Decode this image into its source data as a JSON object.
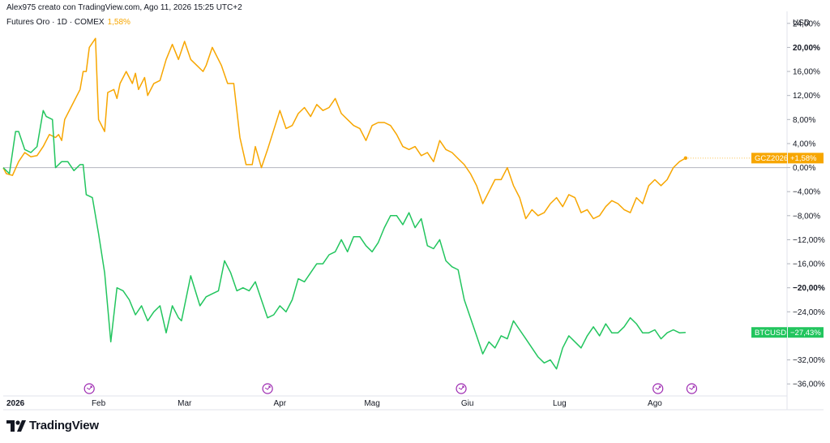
{
  "header": {
    "author_line": "Alex975 creato con TradingView.com, Ago 11, 2026 15:25 UTC+2"
  },
  "legend": {
    "symbol": "Futures Oro · 1D · COMEX",
    "change": "1,58%"
  },
  "brand": {
    "name": "TradingView"
  },
  "colors": {
    "gold": "#f7a600",
    "btc": "#22c55e",
    "event": "#9c27b0"
  },
  "chart_data": {
    "type": "line",
    "currency_label": "USD",
    "y_range": [
      -38,
      26
    ],
    "y_ticks": [
      {
        "v": 24,
        "label": "24,00%"
      },
      {
        "v": 20,
        "label": "20,00%"
      },
      {
        "v": 16,
        "label": "16,00%"
      },
      {
        "v": 12,
        "label": "12,00%"
      },
      {
        "v": 8,
        "label": "8,00%"
      },
      {
        "v": 4,
        "label": "4,00%"
      },
      {
        "v": 0,
        "label": "0,00%"
      },
      {
        "v": -4,
        "label": "−4,00%"
      },
      {
        "v": -8,
        "label": "−8,00%"
      },
      {
        "v": -12,
        "label": "−12,00%"
      },
      {
        "v": -16,
        "label": "−16,00%"
      },
      {
        "v": -20,
        "label": "−20,00%"
      },
      {
        "v": -24,
        "label": "−24,00%"
      },
      {
        "v": -32,
        "label": "−32,00%"
      },
      {
        "v": -36,
        "label": "−36,00%"
      }
    ],
    "x_range": [
      "2026-01-01",
      "2026-09-13"
    ],
    "x_ticks": [
      {
        "date": "2026-01-01",
        "label": "2026",
        "bold": true
      },
      {
        "date": "2026-02-01",
        "label": "Feb"
      },
      {
        "date": "2026-03-01",
        "label": "Mar"
      },
      {
        "date": "2026-04-01",
        "label": "Apr"
      },
      {
        "date": "2026-05-01",
        "label": "Mag"
      },
      {
        "date": "2026-06-01",
        "label": "Giu"
      },
      {
        "date": "2026-07-01",
        "label": "Lug"
      },
      {
        "date": "2026-08-01",
        "label": "Ago"
      }
    ],
    "event_markers": [
      "2026-01-29",
      "2026-03-28",
      "2026-05-30",
      "2026-08-02",
      "2026-08-13"
    ],
    "series": [
      {
        "name": "GCZ2026",
        "color": "#f7a600",
        "last_label": "+1,58%",
        "points": [
          [
            "2026-01-01",
            0
          ],
          [
            "2026-01-02",
            -1
          ],
          [
            "2026-01-04",
            -1.3
          ],
          [
            "2026-01-06",
            1
          ],
          [
            "2026-01-08",
            2.5
          ],
          [
            "2026-01-10",
            1.8
          ],
          [
            "2026-01-12",
            2
          ],
          [
            "2026-01-14",
            3.5
          ],
          [
            "2026-01-16",
            5.5
          ],
          [
            "2026-01-18",
            5
          ],
          [
            "2026-01-19",
            5.5
          ],
          [
            "2026-01-20",
            4.5
          ],
          [
            "2026-01-21",
            8
          ],
          [
            "2026-01-23",
            10
          ],
          [
            "2026-01-25",
            12
          ],
          [
            "2026-01-26",
            13
          ],
          [
            "2026-01-27",
            16
          ],
          [
            "2026-01-28",
            16
          ],
          [
            "2026-01-29",
            20
          ],
          [
            "2026-01-31",
            21.5
          ],
          [
            "2026-02-01",
            8
          ],
          [
            "2026-02-03",
            6
          ],
          [
            "2026-02-04",
            12.5
          ],
          [
            "2026-02-06",
            13
          ],
          [
            "2026-02-07",
            11.5
          ],
          [
            "2026-02-08",
            14
          ],
          [
            "2026-02-10",
            16
          ],
          [
            "2026-02-12",
            14
          ],
          [
            "2026-02-13",
            15.7
          ],
          [
            "2026-02-14",
            13
          ],
          [
            "2026-02-16",
            15
          ],
          [
            "2026-02-17",
            12
          ],
          [
            "2026-02-19",
            14
          ],
          [
            "2026-02-21",
            14.5
          ],
          [
            "2026-02-23",
            18
          ],
          [
            "2026-02-25",
            20.5
          ],
          [
            "2026-02-27",
            18
          ],
          [
            "2026-03-01",
            21
          ],
          [
            "2026-03-03",
            18
          ],
          [
            "2026-03-05",
            17
          ],
          [
            "2026-03-07",
            16
          ],
          [
            "2026-03-08",
            17
          ],
          [
            "2026-03-10",
            20
          ],
          [
            "2026-03-13",
            17
          ],
          [
            "2026-03-15",
            14
          ],
          [
            "2026-03-17",
            14
          ],
          [
            "2026-03-19",
            5
          ],
          [
            "2026-03-21",
            0.5
          ],
          [
            "2026-03-23",
            0.5
          ],
          [
            "2026-03-24",
            3.5
          ],
          [
            "2026-03-26",
            0
          ],
          [
            "2026-03-28",
            3
          ],
          [
            "2026-04-01",
            9.5
          ],
          [
            "2026-04-03",
            6.5
          ],
          [
            "2026-04-05",
            7
          ],
          [
            "2026-04-07",
            9
          ],
          [
            "2026-04-09",
            10
          ],
          [
            "2026-04-11",
            8.5
          ],
          [
            "2026-04-13",
            10.5
          ],
          [
            "2026-04-15",
            9.5
          ],
          [
            "2026-04-17",
            10
          ],
          [
            "2026-04-19",
            11.5
          ],
          [
            "2026-04-21",
            9
          ],
          [
            "2026-04-23",
            8
          ],
          [
            "2026-04-25",
            7
          ],
          [
            "2026-04-27",
            6.5
          ],
          [
            "2026-04-29",
            4.5
          ],
          [
            "2026-05-01",
            7
          ],
          [
            "2026-05-03",
            7.5
          ],
          [
            "2026-05-05",
            7.5
          ],
          [
            "2026-05-07",
            7
          ],
          [
            "2026-05-09",
            5.5
          ],
          [
            "2026-05-11",
            3.5
          ],
          [
            "2026-05-13",
            3
          ],
          [
            "2026-05-15",
            3.5
          ],
          [
            "2026-05-17",
            2
          ],
          [
            "2026-05-19",
            2.5
          ],
          [
            "2026-05-21",
            1
          ],
          [
            "2026-05-23",
            4.5
          ],
          [
            "2026-05-25",
            3
          ],
          [
            "2026-05-27",
            2.5
          ],
          [
            "2026-05-29",
            1.5
          ],
          [
            "2026-05-31",
            0.5
          ],
          [
            "2026-06-02",
            -1
          ],
          [
            "2026-06-04",
            -3
          ],
          [
            "2026-06-06",
            -6
          ],
          [
            "2026-06-08",
            -4
          ],
          [
            "2026-06-10",
            -2
          ],
          [
            "2026-06-12",
            -2
          ],
          [
            "2026-06-14",
            0
          ],
          [
            "2026-06-16",
            -3
          ],
          [
            "2026-06-18",
            -5
          ],
          [
            "2026-06-20",
            -8.5
          ],
          [
            "2026-06-22",
            -7
          ],
          [
            "2026-06-24",
            -8
          ],
          [
            "2026-06-26",
            -7.5
          ],
          [
            "2026-06-28",
            -6
          ],
          [
            "2026-06-30",
            -5
          ],
          [
            "2026-07-02",
            -6.5
          ],
          [
            "2026-07-04",
            -4.5
          ],
          [
            "2026-07-06",
            -5
          ],
          [
            "2026-07-08",
            -7.5
          ],
          [
            "2026-07-10",
            -7
          ],
          [
            "2026-07-12",
            -8.5
          ],
          [
            "2026-07-14",
            -8
          ],
          [
            "2026-07-16",
            -6.5
          ],
          [
            "2026-07-18",
            -5.5
          ],
          [
            "2026-07-20",
            -6
          ],
          [
            "2026-07-22",
            -7
          ],
          [
            "2026-07-24",
            -7.5
          ],
          [
            "2026-07-26",
            -5
          ],
          [
            "2026-07-28",
            -6
          ],
          [
            "2026-07-30",
            -3
          ],
          [
            "2026-08-01",
            -2
          ],
          [
            "2026-08-03",
            -3
          ],
          [
            "2026-08-05",
            -2
          ],
          [
            "2026-08-07",
            0
          ],
          [
            "2026-08-09",
            1
          ],
          [
            "2026-08-11",
            1.58
          ]
        ]
      },
      {
        "name": "BTCUSD",
        "color": "#22c55e",
        "last_label": "−27,43%",
        "points": [
          [
            "2026-01-01",
            0
          ],
          [
            "2026-01-03",
            -1
          ],
          [
            "2026-01-05",
            6
          ],
          [
            "2026-01-06",
            6
          ],
          [
            "2026-01-08",
            3
          ],
          [
            "2026-01-10",
            2.5
          ],
          [
            "2026-01-12",
            3.5
          ],
          [
            "2026-01-14",
            9.5
          ],
          [
            "2026-01-15",
            8.5
          ],
          [
            "2026-01-17",
            8
          ],
          [
            "2026-01-18",
            0
          ],
          [
            "2026-01-20",
            1
          ],
          [
            "2026-01-22",
            1
          ],
          [
            "2026-01-24",
            -0.5
          ],
          [
            "2026-01-26",
            0.5
          ],
          [
            "2026-01-27",
            0.5
          ],
          [
            "2026-01-28",
            -4.5
          ],
          [
            "2026-01-30",
            -5
          ],
          [
            "2026-02-01",
            -11
          ],
          [
            "2026-02-03",
            -17.5
          ],
          [
            "2026-02-05",
            -29
          ],
          [
            "2026-02-07",
            -20
          ],
          [
            "2026-02-09",
            -20.5
          ],
          [
            "2026-02-11",
            -22
          ],
          [
            "2026-02-13",
            -24.5
          ],
          [
            "2026-02-15",
            -23
          ],
          [
            "2026-02-17",
            -25.5
          ],
          [
            "2026-02-19",
            -24
          ],
          [
            "2026-02-21",
            -23
          ],
          [
            "2026-02-23",
            -27.5
          ],
          [
            "2026-02-25",
            -23
          ],
          [
            "2026-02-27",
            -25
          ],
          [
            "2026-02-28",
            -25.5
          ],
          [
            "2026-03-03",
            -18
          ],
          [
            "2026-03-06",
            -23
          ],
          [
            "2026-03-08",
            -21.5
          ],
          [
            "2026-03-10",
            -21
          ],
          [
            "2026-03-12",
            -20.5
          ],
          [
            "2026-03-14",
            -15.5
          ],
          [
            "2026-03-16",
            -17.5
          ],
          [
            "2026-03-18",
            -20.5
          ],
          [
            "2026-03-20",
            -20
          ],
          [
            "2026-03-22",
            -20.5
          ],
          [
            "2026-03-24",
            -19
          ],
          [
            "2026-03-26",
            -22
          ],
          [
            "2026-03-28",
            -25
          ],
          [
            "2026-03-30",
            -24.5
          ],
          [
            "2026-04-01",
            -23
          ],
          [
            "2026-04-03",
            -24
          ],
          [
            "2026-04-05",
            -22
          ],
          [
            "2026-04-07",
            -18.5
          ],
          [
            "2026-04-09",
            -19
          ],
          [
            "2026-04-11",
            -17.5
          ],
          [
            "2026-04-13",
            -16
          ],
          [
            "2026-04-15",
            -16
          ],
          [
            "2026-04-17",
            -14.5
          ],
          [
            "2026-04-19",
            -14
          ],
          [
            "2026-04-21",
            -12
          ],
          [
            "2026-04-23",
            -14
          ],
          [
            "2026-04-25",
            -11.5
          ],
          [
            "2026-04-27",
            -11.5
          ],
          [
            "2026-04-29",
            -13
          ],
          [
            "2026-05-01",
            -14
          ],
          [
            "2026-05-03",
            -12.5
          ],
          [
            "2026-05-05",
            -10
          ],
          [
            "2026-05-07",
            -8
          ],
          [
            "2026-05-09",
            -8
          ],
          [
            "2026-05-11",
            -9.5
          ],
          [
            "2026-05-13",
            -7.5
          ],
          [
            "2026-05-15",
            -10
          ],
          [
            "2026-05-17",
            -8.5
          ],
          [
            "2026-05-19",
            -13
          ],
          [
            "2026-05-21",
            -13.5
          ],
          [
            "2026-05-23",
            -12
          ],
          [
            "2026-05-25",
            -15.5
          ],
          [
            "2026-05-27",
            -16.5
          ],
          [
            "2026-05-29",
            -17
          ],
          [
            "2026-05-31",
            -22
          ],
          [
            "2026-06-02",
            -25
          ],
          [
            "2026-06-04",
            -28
          ],
          [
            "2026-06-06",
            -31
          ],
          [
            "2026-06-08",
            -29
          ],
          [
            "2026-06-10",
            -30
          ],
          [
            "2026-06-12",
            -28
          ],
          [
            "2026-06-14",
            -28.5
          ],
          [
            "2026-06-16",
            -25.5
          ],
          [
            "2026-06-18",
            -27
          ],
          [
            "2026-06-20",
            -28.5
          ],
          [
            "2026-06-22",
            -30
          ],
          [
            "2026-06-24",
            -31.5
          ],
          [
            "2026-06-26",
            -32.5
          ],
          [
            "2026-06-28",
            -32
          ],
          [
            "2026-06-30",
            -33.5
          ],
          [
            "2026-07-02",
            -30
          ],
          [
            "2026-07-04",
            -28
          ],
          [
            "2026-07-06",
            -29
          ],
          [
            "2026-07-08",
            -30
          ],
          [
            "2026-07-10",
            -28
          ],
          [
            "2026-07-12",
            -26.5
          ],
          [
            "2026-07-14",
            -28
          ],
          [
            "2026-07-16",
            -26
          ],
          [
            "2026-07-18",
            -27.5
          ],
          [
            "2026-07-20",
            -27.5
          ],
          [
            "2026-07-22",
            -26.5
          ],
          [
            "2026-07-24",
            -25
          ],
          [
            "2026-07-26",
            -26
          ],
          [
            "2026-07-28",
            -27.5
          ],
          [
            "2026-07-30",
            -27.5
          ],
          [
            "2026-08-01",
            -27
          ],
          [
            "2026-08-03",
            -28.5
          ],
          [
            "2026-08-05",
            -27.5
          ],
          [
            "2026-08-07",
            -27
          ],
          [
            "2026-08-09",
            -27.5
          ],
          [
            "2026-08-11",
            -27.43
          ]
        ]
      }
    ]
  }
}
